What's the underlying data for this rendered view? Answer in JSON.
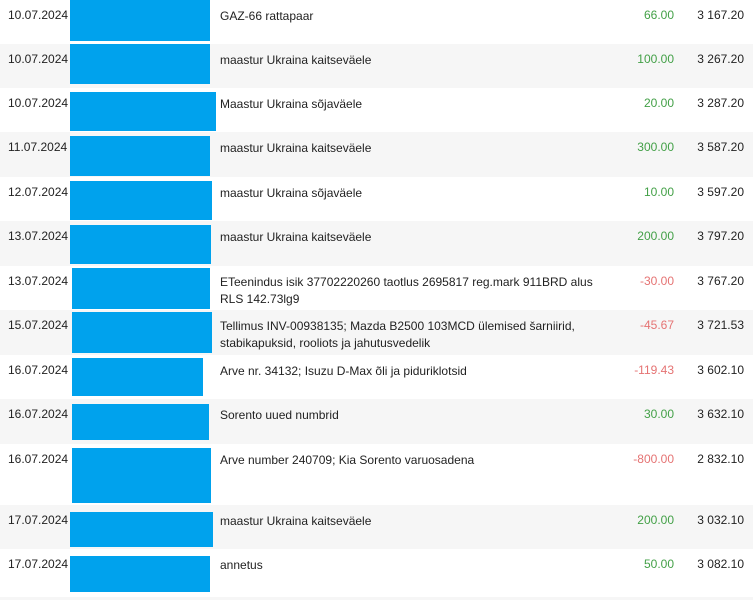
{
  "transactions": [
    {
      "date": "10.07.2024",
      "description": "GAZ-66 rattapaar",
      "amount": "66.00",
      "sign": "pos",
      "balance": "3 167.20"
    },
    {
      "date": "10.07.2024",
      "description": "maastur Ukraina kaitseväele",
      "amount": "100.00",
      "sign": "pos",
      "balance": "3 267.20"
    },
    {
      "date": "10.07.2024",
      "description": "Maastur Ukraina sõjaväele",
      "amount": "20.00",
      "sign": "pos",
      "balance": "3 287.20"
    },
    {
      "date": "11.07.2024",
      "description": "maastur Ukraina kaitseväele",
      "amount": "300.00",
      "sign": "pos",
      "balance": "3 587.20"
    },
    {
      "date": "12.07.2024",
      "description": "maastur Ukraina sõjaväele",
      "amount": "10.00",
      "sign": "pos",
      "balance": "3 597.20"
    },
    {
      "date": "13.07.2024",
      "description": "maastur Ukraina kaitseväele",
      "amount": "200.00",
      "sign": "pos",
      "balance": "3 797.20"
    },
    {
      "date": "13.07.2024",
      "description": "ETeenindus isik 37702220260 taotlus 2695817 reg.mark 911BRD alus RLS 142.73lg9",
      "amount": "-30.00",
      "sign": "neg",
      "balance": "3 767.20"
    },
    {
      "date": "15.07.2024",
      "description": "Tellimus INV-00938135; Mazda B2500 103MCD ülemised šarniirid, stabikapuksid, rooliots ja jahutusvedelik",
      "amount": "-45.67",
      "sign": "neg",
      "balance": "3 721.53"
    },
    {
      "date": "16.07.2024",
      "description": "Arve nr. 34132; Isuzu D-Max õli ja piduriklotsid",
      "amount": "-119.43",
      "sign": "neg",
      "balance": "3 602.10"
    },
    {
      "date": "16.07.2024",
      "description": "Sorento uued numbrid",
      "amount": "30.00",
      "sign": "pos",
      "balance": "3 632.10"
    },
    {
      "date": "16.07.2024",
      "description": "Arve number 240709; Kia Sorento varuosadena",
      "amount": "-800.00",
      "sign": "neg",
      "balance": "2 832.10"
    },
    {
      "date": "17.07.2024",
      "description": "maastur Ukraina kaitseväele",
      "amount": "200.00",
      "sign": "pos",
      "balance": "3 032.10"
    },
    {
      "date": "17.07.2024",
      "description": "annetus",
      "amount": "50.00",
      "sign": "pos",
      "balance": "3 082.10"
    }
  ],
  "colors": {
    "redaction": "#00a2ed",
    "positive": "#43a047",
    "negative": "#e57373",
    "alt_row": "#f6f6f6"
  }
}
